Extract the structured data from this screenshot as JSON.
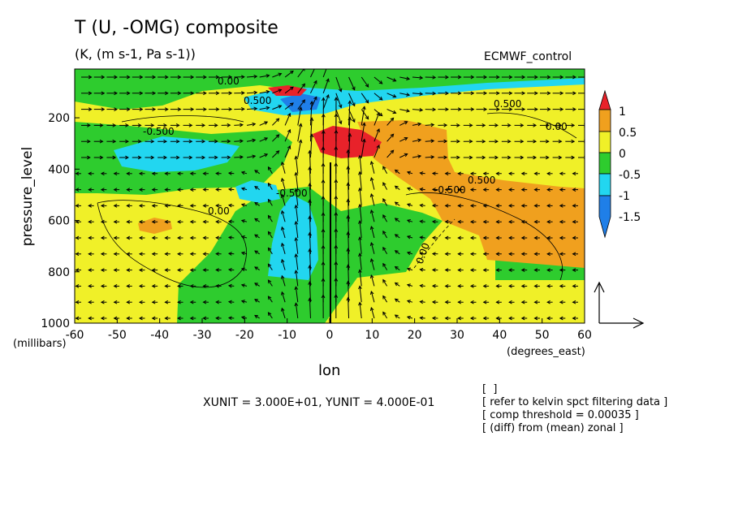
{
  "chart_data": {
    "type": "contour-vector",
    "title": "T (U, -OMG) composite",
    "subtitle": "(K, (m s-1, Pa s-1))",
    "dataset": "ECMWF_control",
    "xlabel": "lon",
    "xunits": "(degrees_east)",
    "ylabel": "pressure_level",
    "yunits": "(millibars)",
    "xlim": [
      -60,
      60
    ],
    "ylim": [
      1000,
      10
    ],
    "x_ticks": [
      "-60",
      "-50",
      "-40",
      "-30",
      "-20",
      "-10",
      "0",
      "10",
      "20",
      "30",
      "40",
      "50",
      "60"
    ],
    "y_ticks": [
      "1000",
      "800",
      "600",
      "400",
      "200"
    ],
    "contour_labels": [
      "0.00",
      "-0.500",
      "0.500",
      "-0.500",
      "0.00",
      "0.500",
      "-0.500",
      "0.00",
      "0.00",
      "0.500"
    ],
    "colorbar": {
      "labels": [
        "1",
        "0.5",
        "0",
        "-0.5",
        "-1",
        "-1.5"
      ],
      "colors": [
        "#e8222a",
        "#f0a01e",
        "#f0f028",
        "#2ecc2e",
        "#22d6f0",
        "#1f7fe8"
      ]
    },
    "vector_units": "XUNIT = 3.000E+01, YUNIT = 4.000E-01",
    "notes": [
      "[  ]",
      "[ refer to kelvin spct filtering data ]",
      "[ comp threshold = 0.00035 ]",
      "[ (diff) from (mean) zonal ]"
    ]
  }
}
